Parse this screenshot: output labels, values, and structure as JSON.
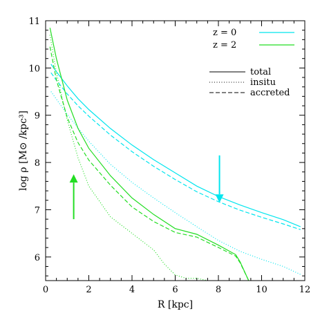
{
  "chart_data": {
    "type": "line",
    "xlabel": "R [kpc]",
    "ylabel": "log ρ [M⊙ /kpc³]",
    "xlim": [
      0,
      12
    ],
    "ylim": [
      5.5,
      11
    ],
    "xticks": [
      0,
      2,
      4,
      6,
      8,
      10,
      12
    ],
    "yticks": [
      6,
      7,
      8,
      9,
      10,
      11
    ],
    "grid": false,
    "colors": {
      "z0": "#00e5ee",
      "z2": "#22dd22"
    },
    "legend_redshift": {
      "placement": "top-right",
      "entries": [
        {
          "label": "z =   0",
          "color": "#00e5ee"
        },
        {
          "label": "z =   2",
          "color": "#22dd22"
        }
      ]
    },
    "legend_style": {
      "placement": "upper-right",
      "entries": [
        {
          "label": "total",
          "dash": "solid"
        },
        {
          "label": "insitu",
          "dash": "dotted"
        },
        {
          "label": "accreted",
          "dash": "dashed"
        }
      ]
    },
    "series": [
      {
        "redshift": "0",
        "component": "total",
        "color": "#00e5ee",
        "dash": "solid",
        "x": [
          0.25,
          0.5,
          1,
          1.5,
          2,
          3,
          4,
          5,
          6,
          7,
          8,
          9,
          10,
          11,
          11.8
        ],
        "y": [
          10.08,
          9.92,
          9.62,
          9.35,
          9.12,
          8.72,
          8.37,
          8.06,
          7.78,
          7.5,
          7.28,
          7.1,
          6.94,
          6.79,
          6.64
        ]
      },
      {
        "redshift": "0",
        "component": "accreted",
        "color": "#00e5ee",
        "dash": "dashed",
        "x": [
          0.25,
          0.5,
          1,
          1.5,
          2,
          3,
          4,
          5,
          6,
          7,
          8,
          9,
          10,
          11,
          11.8
        ],
        "y": [
          9.9,
          9.74,
          9.45,
          9.2,
          8.98,
          8.58,
          8.23,
          7.92,
          7.64,
          7.38,
          7.17,
          6.99,
          6.84,
          6.7,
          6.58
        ]
      },
      {
        "redshift": "0",
        "component": "insitu",
        "color": "#00e5ee",
        "dash": "dotted",
        "x": [
          0.25,
          0.5,
          1,
          1.5,
          2,
          3,
          4,
          5,
          6,
          7,
          8,
          9,
          10,
          11,
          11.8
        ],
        "y": [
          9.5,
          9.34,
          9.02,
          8.73,
          8.45,
          7.96,
          7.58,
          7.25,
          6.94,
          6.64,
          6.35,
          6.12,
          5.95,
          5.8,
          5.63
        ]
      },
      {
        "redshift": "2",
        "component": "total",
        "color": "#22dd22",
        "dash": "solid",
        "x": [
          0.2,
          0.5,
          1,
          1.5,
          2,
          3,
          4,
          5,
          6,
          7,
          8,
          8.8,
          9.0,
          9.4
        ],
        "y": [
          10.85,
          10.2,
          9.32,
          8.72,
          8.3,
          7.72,
          7.25,
          6.9,
          6.6,
          6.48,
          6.25,
          6.05,
          5.9,
          5.5
        ]
      },
      {
        "redshift": "2",
        "component": "accreted",
        "color": "#22dd22",
        "dash": "dashed",
        "x": [
          0.2,
          0.5,
          1,
          1.5,
          2,
          3,
          4,
          5,
          6,
          7,
          8,
          8.8,
          9.0,
          9.4
        ],
        "y": [
          10.45,
          9.75,
          8.95,
          8.42,
          8.05,
          7.52,
          7.06,
          6.75,
          6.52,
          6.42,
          6.2,
          6.02,
          5.88,
          5.5
        ]
      },
      {
        "redshift": "2",
        "component": "insitu",
        "color": "#22dd22",
        "dash": "dotted",
        "x": [
          0.2,
          0.5,
          1,
          1.5,
          2,
          3,
          4,
          5,
          5.5,
          6,
          6.5,
          7,
          7.5
        ],
        "y": [
          10.7,
          9.9,
          8.9,
          8.1,
          7.5,
          6.85,
          6.5,
          6.15,
          5.85,
          5.62,
          5.55,
          5.55,
          5.5
        ]
      }
    ],
    "annotations": [
      {
        "shape": "arrow",
        "direction": "up",
        "color": "#22dd22",
        "x": 1.3,
        "y_from": 6.8,
        "y_to": 7.75
      },
      {
        "shape": "arrow",
        "direction": "down",
        "color": "#00e5ee",
        "x": 8.05,
        "y_from": 8.15,
        "y_to": 7.15
      }
    ]
  }
}
